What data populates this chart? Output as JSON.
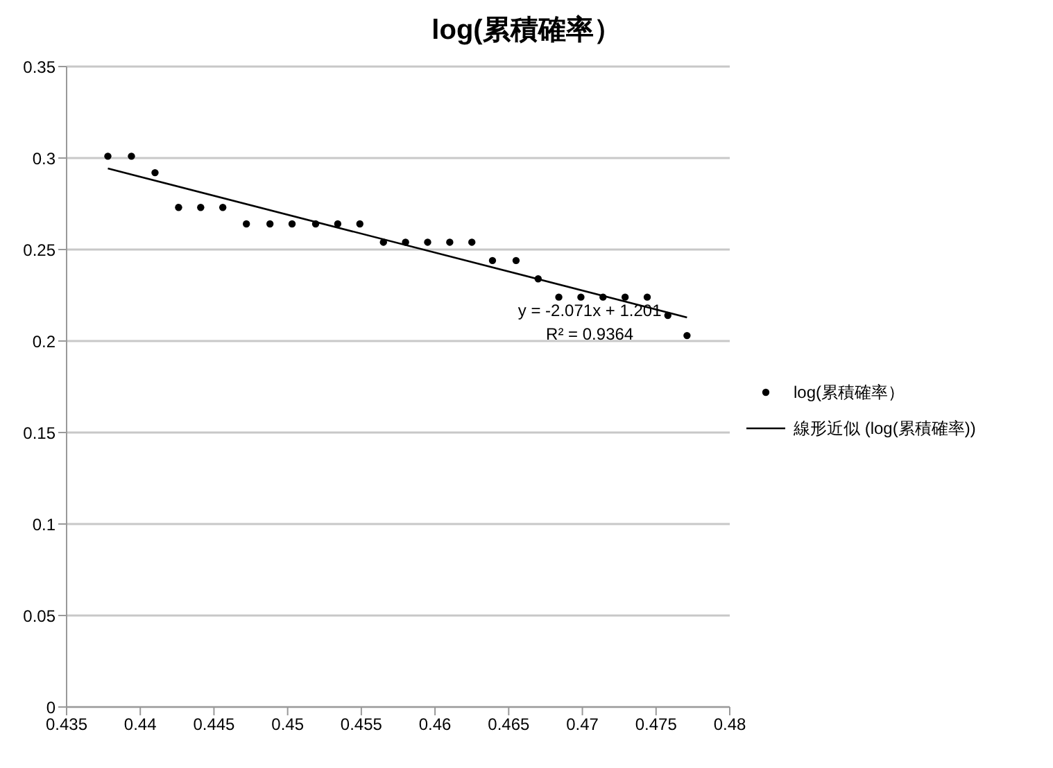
{
  "chart_data": {
    "type": "scatter",
    "title": "log(累積確率）",
    "xlim": [
      0.435,
      0.48
    ],
    "xticks": [
      0.435,
      0.44,
      0.445,
      0.45,
      0.455,
      0.46,
      0.465,
      0.47,
      0.475,
      0.48
    ],
    "ylim": [
      0,
      0.35
    ],
    "yticks": [
      0,
      0.05,
      0.1,
      0.15,
      0.2,
      0.25,
      0.3,
      0.35
    ],
    "grid": "y",
    "legend": "right",
    "series": [
      {
        "name": "log(累積確率）",
        "marker": "circle",
        "color": "#000000",
        "x": [
          0.4378,
          0.4394,
          0.441,
          0.4426,
          0.4441,
          0.4456,
          0.4472,
          0.4488,
          0.4503,
          0.4519,
          0.4534,
          0.4549,
          0.4565,
          0.458,
          0.4595,
          0.461,
          0.4625,
          0.4639,
          0.4655,
          0.467,
          0.4684,
          0.4699,
          0.4714,
          0.4729,
          0.4744,
          0.4758,
          0.4771
        ],
        "values": [
          0.301,
          0.301,
          0.292,
          0.273,
          0.273,
          0.273,
          0.264,
          0.264,
          0.264,
          0.264,
          0.264,
          0.264,
          0.254,
          0.254,
          0.254,
          0.254,
          0.254,
          0.244,
          0.244,
          0.234,
          0.224,
          0.224,
          0.224,
          0.224,
          0.224,
          0.214,
          0.203
        ]
      },
      {
        "name": "線形近似 (log(累積確率))",
        "type": "line",
        "marker": "none",
        "line_style": "solid",
        "color": "#000000",
        "x": [
          0.4378,
          0.4771
        ],
        "values": [
          0.2943,
          0.2129
        ]
      }
    ],
    "annotations": [
      "y = -2.071x + 1.201",
      "R² = 0.9364"
    ]
  }
}
